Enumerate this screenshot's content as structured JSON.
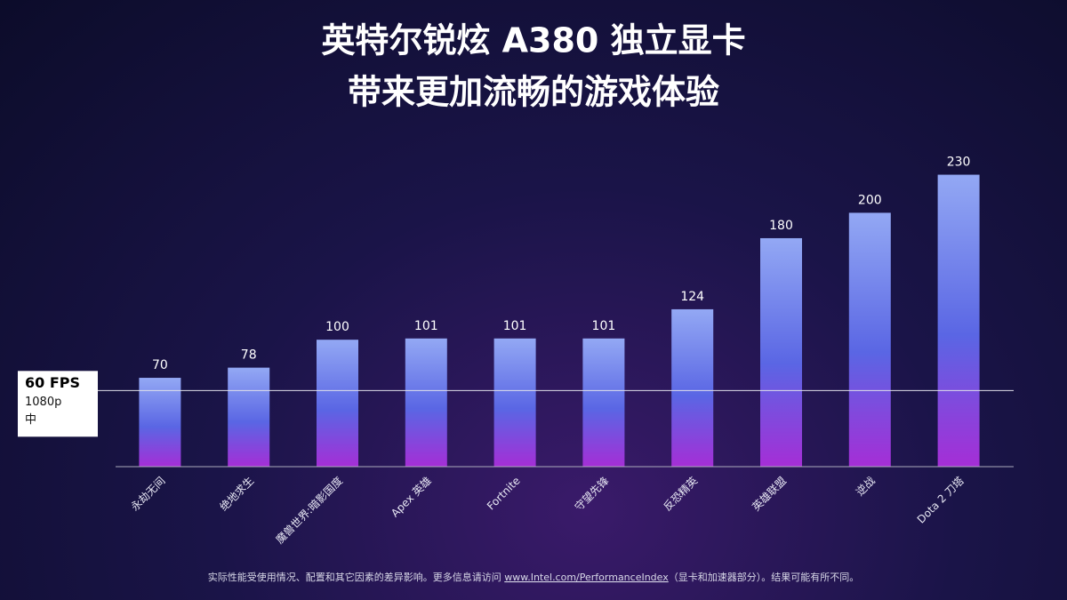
{
  "chart_data": {
    "type": "bar",
    "title": [
      "英特尔锐炫 A380 独立显卡",
      "带来更加流畅的游戏体验"
    ],
    "categories": [
      "永劫无间",
      "绝地求生",
      "魔兽世界:暗影国度",
      "Apex 英雄",
      "Fortnite",
      "守望先锋",
      "反恐精英",
      "英雄联盟",
      "逆战",
      "Dota 2 刀塔"
    ],
    "values": [
      70,
      78,
      100,
      101,
      101,
      101,
      124,
      180,
      200,
      230
    ],
    "colors": [
      "#93a8f4",
      "#5a66e4",
      "#a52ed6"
    ],
    "ylim": [
      0,
      250
    ],
    "reference_line": {
      "value": 60,
      "label": "60 FPS",
      "sublabels": [
        "1080p",
        "中"
      ]
    },
    "footnote": [
      "实际性能受使用情况、配置和其它因素的差异影响。更多信息请访问 ",
      "www.Intel.com/PerformanceIndex",
      "（显卡和加速器部分）。结果可能有所不同。"
    ]
  }
}
